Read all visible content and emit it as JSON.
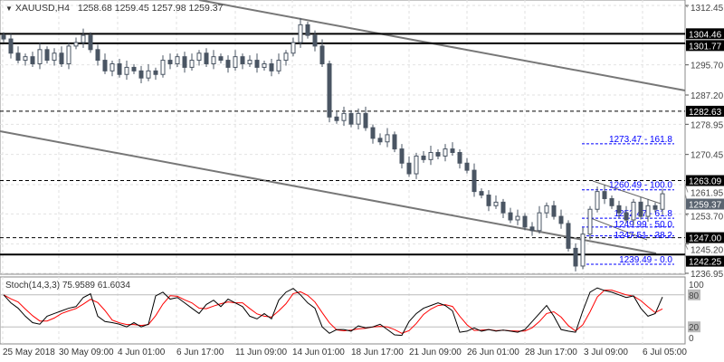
{
  "header": {
    "symbol": "XAUUSD,H4",
    "ohlc": "1258.68 1259.45 1257.98 1259.37"
  },
  "stoch": {
    "title": "Stoch(14,3,3) 75.9589 61.6034",
    "levels": [
      "100",
      "80",
      "20",
      "0"
    ]
  },
  "chart_data": {
    "type": "candlestick",
    "symbol": "XAUUSD",
    "timeframe": "H4",
    "ylim": [
      1236.95,
      1312.45
    ],
    "y_ticks": [
      "1312.45",
      "1295.70",
      "1287.20",
      "1278.95",
      "1270.45",
      "1261.95",
      "1253.70",
      "1245.20",
      "1236.95"
    ],
    "x_ticks": [
      "25 May 2018",
      "30 May 09:00",
      "4 Jun 01:00",
      "6 Jun 17:00",
      "11 Jun 09:00",
      "14 Jun 01:00",
      "18 Jun 17:00",
      "21 Jun 09:00",
      "26 Jun 01:00",
      "28 Jun 17:00",
      "3 Jul 09:00",
      "6 Jul 05:00"
    ],
    "close": [
      1303,
      1299,
      1297,
      1298,
      1296,
      1300,
      1297,
      1299,
      1296,
      1301,
      1302,
      1304,
      1300,
      1297,
      1294,
      1296,
      1293,
      1295,
      1294,
      1292,
      1294,
      1293,
      1297,
      1296,
      1298,
      1295,
      1297,
      1299,
      1296,
      1298,
      1297,
      1295,
      1298,
      1296,
      1297,
      1295,
      1296,
      1294,
      1297,
      1299,
      1302,
      1307,
      1304,
      1301,
      1296,
      1281,
      1280,
      1282,
      1279,
      1282,
      1278,
      1275,
      1274,
      1276,
      1272,
      1268,
      1265,
      1270,
      1269,
      1271,
      1270,
      1272,
      1271,
      1268,
      1266,
      1260,
      1259,
      1256,
      1257,
      1254,
      1252,
      1253,
      1250,
      1249,
      1254,
      1256,
      1253,
      1251,
      1244,
      1239,
      1248,
      1255,
      1260,
      1258,
      1256,
      1254,
      1252,
      1257,
      1253,
      1256,
      1255,
      1259.37
    ],
    "current_price": "1259.37",
    "support_resistance": [
      {
        "price": 1304.46,
        "label": "1304.46",
        "style": "solid"
      },
      {
        "price": 1301.77,
        "label": "1301.77",
        "style": "solid"
      },
      {
        "price": 1282.63,
        "label": "1282.63",
        "style": "dashed"
      },
      {
        "price": 1263.09,
        "label": "1263.09",
        "style": "dashed"
      },
      {
        "price": 1247.0,
        "label": "1247.00",
        "style": "dashed"
      },
      {
        "price": 1242.25,
        "label": "1242.25",
        "style": "solid"
      }
    ],
    "fibonacci": [
      {
        "price": 1273.47,
        "label": "1273.47 - 161.8"
      },
      {
        "price": 1260.49,
        "label": "1260.49 - 100.0"
      },
      {
        "price": 1252.47,
        "label": "1252.47 - 61.8"
      },
      {
        "price": 1249.99,
        "label": "1249.99 - 50.0"
      },
      {
        "price": 1247.51,
        "label": "1247.51 - 38.2"
      },
      {
        "price": 1239.49,
        "label": "1239.49 - 0.0"
      }
    ],
    "stoch_k": [
      80,
      65,
      55,
      40,
      28,
      25,
      40,
      45,
      50,
      55,
      58,
      75,
      82,
      40,
      30,
      28,
      25,
      20,
      28,
      20,
      25,
      78,
      85,
      72,
      75,
      65,
      55,
      45,
      62,
      70,
      58,
      72,
      65,
      58,
      40,
      35,
      45,
      35,
      70,
      85,
      92,
      80,
      65,
      55,
      20,
      8,
      15,
      15,
      12,
      22,
      18,
      20,
      25,
      15,
      5,
      4,
      30,
      45,
      55,
      60,
      65,
      60,
      50,
      10,
      12,
      18,
      12,
      15,
      12,
      14,
      12,
      10,
      15,
      30,
      45,
      60,
      40,
      15,
      12,
      10,
      50,
      85,
      93,
      88,
      85,
      80,
      75,
      78,
      55,
      40,
      45,
      76
    ],
    "colors": {
      "candle": "#4a5563",
      "sr": "#000000",
      "fib": "#0000ff",
      "channel": "#777777",
      "stoch_k": "#000000",
      "stoch_d": "#ff0000",
      "current_label": "#5a6470"
    }
  }
}
